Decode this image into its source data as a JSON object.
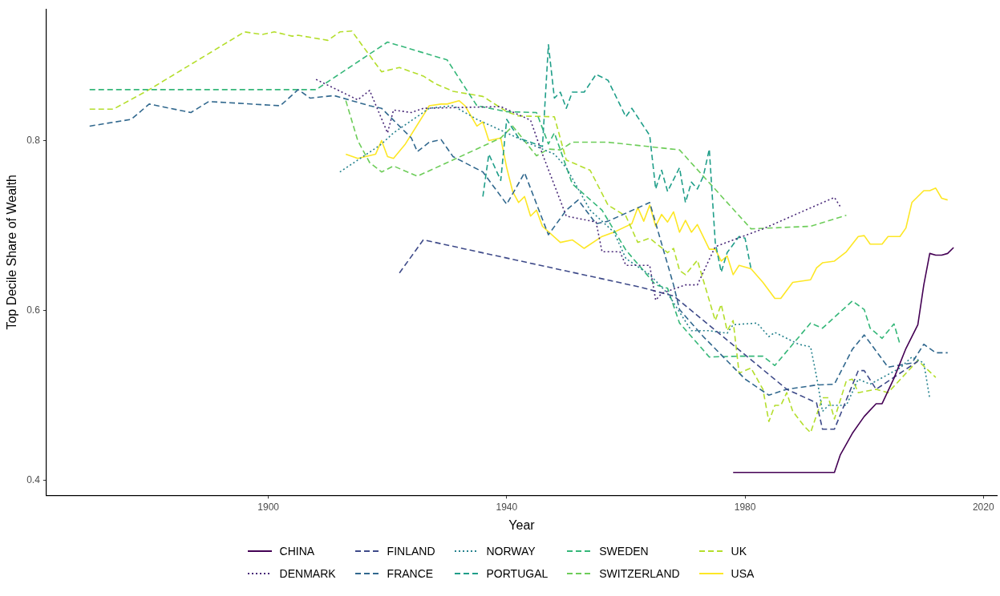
{
  "chart_data": {
    "type": "line",
    "xlabel": "Year",
    "ylabel": "Top Decile Share of Wealth",
    "xlim": [
      1862.75,
      2022.25
    ],
    "ylim": [
      0.382,
      0.955
    ],
    "xticks": [
      1900,
      1940,
      1980,
      2020
    ],
    "yticks": [
      0.4,
      0.6,
      0.8
    ],
    "grid": false,
    "legend": "bottom",
    "marker": "none",
    "series": [
      {
        "name": "CHINA",
        "color": "#440154",
        "line_style": "solid",
        "x": [
          1978,
          1995,
          1996,
          1998,
          2000,
          2002,
          2003,
          2005,
          2007,
          2009,
          2010,
          2011,
          2012,
          2013,
          2014,
          2015
        ],
        "values": [
          0.409,
          0.409,
          0.43,
          0.455,
          0.475,
          0.49,
          0.49,
          0.52,
          0.555,
          0.583,
          0.63,
          0.667,
          0.665,
          0.665,
          0.667,
          0.674
        ]
      },
      {
        "name": "DENMARK",
        "color": "#482878",
        "line_style": "dotted",
        "x": [
          1908,
          1915,
          1917,
          1920,
          1921,
          1924,
          1926,
          1939,
          1944,
          1946,
          1950,
          1955,
          1956,
          1959,
          1960,
          1964,
          1965,
          1966,
          1970,
          1972,
          1975,
          1983,
          1995,
          1996
        ],
        "values": [
          0.872,
          0.848,
          0.859,
          0.809,
          0.836,
          0.833,
          0.838,
          0.84,
          0.824,
          0.784,
          0.711,
          0.704,
          0.669,
          0.669,
          0.653,
          0.653,
          0.612,
          0.62,
          0.63,
          0.63,
          0.675,
          0.696,
          0.733,
          0.722
        ]
      },
      {
        "name": "FINLAND",
        "color": "#3e4a89",
        "line_style": "dashed",
        "x": [
          1922,
          1926,
          1962,
          1968,
          1987,
          1992,
          1993,
          1995,
          1999,
          2000,
          2002,
          2009
        ],
        "values": [
          0.644,
          0.683,
          0.628,
          0.617,
          0.507,
          0.491,
          0.46,
          0.46,
          0.529,
          0.529,
          0.507,
          0.54
        ]
      },
      {
        "name": "FRANCE",
        "color": "#31688e",
        "line_style": "dashed",
        "x": [
          1870,
          1877,
          1880,
          1887,
          1890,
          1902,
          1905,
          1907,
          1911,
          1917,
          1919,
          1924,
          1925,
          1927,
          1929,
          1931,
          1936,
          1940,
          1943,
          1947,
          1950,
          1952,
          1955,
          1957,
          1964,
          1968,
          1969,
          1973,
          1980,
          1984,
          1987,
          1992,
          1995,
          1998,
          2000,
          2004,
          2008,
          2010,
          2012,
          2014
        ],
        "values": [
          0.817,
          0.825,
          0.843,
          0.833,
          0.846,
          0.841,
          0.86,
          0.85,
          0.853,
          0.841,
          0.838,
          0.803,
          0.787,
          0.798,
          0.801,
          0.781,
          0.763,
          0.725,
          0.762,
          0.689,
          0.718,
          0.73,
          0.702,
          0.705,
          0.727,
          0.63,
          0.601,
          0.569,
          0.519,
          0.5,
          0.507,
          0.512,
          0.513,
          0.554,
          0.571,
          0.533,
          0.538,
          0.56,
          0.55,
          0.55
        ]
      },
      {
        "name": "NORWAY",
        "color": "#26828e",
        "line_style": "dotted",
        "x": [
          1912,
          1918,
          1919,
          1921,
          1927,
          1931,
          1935,
          1940,
          1944,
          1948,
          1950,
          1954,
          1958,
          1960,
          1964,
          1967,
          1971,
          1974,
          1977,
          1978,
          1982,
          1984,
          1985,
          1989,
          1991,
          1992,
          1993,
          1994,
          1997,
          1999,
          2001,
          2006,
          2008,
          2010,
          2011
        ],
        "values": [
          0.763,
          0.791,
          0.796,
          0.809,
          0.838,
          0.841,
          0.825,
          0.809,
          0.796,
          0.784,
          0.768,
          0.718,
          0.692,
          0.661,
          0.642,
          0.62,
          0.576,
          0.576,
          0.573,
          0.583,
          0.585,
          0.569,
          0.574,
          0.56,
          0.557,
          0.522,
          0.481,
          0.488,
          0.488,
          0.519,
          0.513,
          0.532,
          0.545,
          0.538,
          0.496
        ]
      },
      {
        "name": "PORTUGAL",
        "color": "#1f9e89",
        "line_style": "dashed",
        "x": [
          1936,
          1937,
          1939,
          1940,
          1942,
          1946,
          1947,
          1948,
          1949,
          1950,
          1951,
          1953,
          1955,
          1957,
          1960,
          1961,
          1964,
          1965,
          1966,
          1967,
          1969,
          1970,
          1971,
          1972,
          1973,
          1974,
          1975,
          1976,
          1977,
          1979,
          1980,
          1981
        ],
        "values": [
          0.734,
          0.784,
          0.753,
          0.825,
          0.803,
          0.793,
          0.913,
          0.85,
          0.857,
          0.838,
          0.857,
          0.857,
          0.878,
          0.871,
          0.828,
          0.838,
          0.806,
          0.743,
          0.765,
          0.74,
          0.768,
          0.727,
          0.751,
          0.743,
          0.758,
          0.79,
          0.68,
          0.645,
          0.668,
          0.687,
          0.685,
          0.649
        ]
      },
      {
        "name": "SWEDEN",
        "color": "#35b779",
        "line_style": "dashed",
        "x": [
          1870,
          1908,
          1920,
          1930,
          1935,
          1940,
          1945,
          1947,
          1948,
          1951,
          1956,
          1960,
          1965,
          1967,
          1969,
          1974,
          1979,
          1983,
          1985,
          1991,
          1993,
          1998,
          2000,
          2001,
          2003,
          2005,
          2006
        ],
        "values": [
          0.86,
          0.86,
          0.916,
          0.895,
          0.841,
          0.834,
          0.833,
          0.796,
          0.809,
          0.749,
          0.718,
          0.671,
          0.63,
          0.626,
          0.585,
          0.545,
          0.546,
          0.546,
          0.535,
          0.585,
          0.579,
          0.611,
          0.601,
          0.579,
          0.567,
          0.584,
          0.56
        ]
      },
      {
        "name": "SWITZERLAND",
        "color": "#6dcd59",
        "line_style": "dashed",
        "x": [
          1913,
          1915,
          1917,
          1919,
          1921,
          1925,
          1930,
          1939,
          1941,
          1945,
          1947,
          1949,
          1951,
          1957,
          1969,
          1981,
          1991,
          1997
        ],
        "values": [
          0.847,
          0.8,
          0.774,
          0.763,
          0.77,
          0.758,
          0.774,
          0.803,
          0.817,
          0.782,
          0.79,
          0.789,
          0.798,
          0.798,
          0.789,
          0.696,
          0.699,
          0.712
        ]
      },
      {
        "name": "UK",
        "color": "#b4de2c",
        "line_style": "dashed",
        "x": [
          1870,
          1874,
          1880,
          1896,
          1899,
          1901,
          1904,
          1905,
          1910,
          1912,
          1914,
          1919,
          1922,
          1926,
          1928,
          1931,
          1936,
          1940,
          1942,
          1948,
          1950,
          1954,
          1957,
          1960,
          1962,
          1964,
          1967,
          1968,
          1969,
          1970,
          1972,
          1975,
          1976,
          1977,
          1978,
          1979,
          1981,
          1983,
          1984,
          1985,
          1986,
          1987,
          1988,
          1990,
          1991,
          1993,
          1994,
          1995,
          1997,
          1998,
          1999,
          2002,
          2004,
          2009,
          2012
        ],
        "values": [
          0.837,
          0.837,
          0.86,
          0.928,
          0.925,
          0.928,
          0.923,
          0.924,
          0.918,
          0.928,
          0.929,
          0.881,
          0.886,
          0.876,
          0.867,
          0.858,
          0.852,
          0.834,
          0.829,
          0.828,
          0.777,
          0.765,
          0.724,
          0.711,
          0.68,
          0.685,
          0.668,
          0.673,
          0.647,
          0.642,
          0.659,
          0.588,
          0.607,
          0.576,
          0.588,
          0.526,
          0.532,
          0.507,
          0.469,
          0.488,
          0.488,
          0.503,
          0.481,
          0.463,
          0.456,
          0.497,
          0.497,
          0.472,
          0.517,
          0.519,
          0.503,
          0.507,
          0.503,
          0.541,
          0.521
        ]
      },
      {
        "name": "USA",
        "color": "#fde725",
        "line_style": "solid",
        "x": [
          1913,
          1915,
          1918,
          1919,
          1920,
          1921,
          1923,
          1927,
          1929,
          1930,
          1932,
          1933,
          1935,
          1936,
          1937,
          1939,
          1940,
          1941,
          1942,
          1943,
          1944,
          1945,
          1946,
          1949,
          1951,
          1953,
          1956,
          1958,
          1961,
          1962,
          1963,
          1964,
          1965,
          1966,
          1967,
          1968,
          1969,
          1970,
          1971,
          1972,
          1974,
          1975,
          1976,
          1977,
          1978,
          1979,
          1981,
          1983,
          1985,
          1986,
          1988,
          1991,
          1992,
          1993,
          1995,
          1997,
          1999,
          2000,
          2001,
          2003,
          2004,
          2006,
          2007,
          2008,
          2010,
          2011,
          2012,
          2013,
          2014
        ],
        "values": [
          0.784,
          0.779,
          0.784,
          0.8,
          0.781,
          0.779,
          0.796,
          0.841,
          0.843,
          0.843,
          0.847,
          0.841,
          0.817,
          0.822,
          0.8,
          0.803,
          0.768,
          0.74,
          0.727,
          0.734,
          0.711,
          0.718,
          0.699,
          0.68,
          0.683,
          0.673,
          0.687,
          0.692,
          0.702,
          0.721,
          0.705,
          0.724,
          0.699,
          0.713,
          0.704,
          0.716,
          0.692,
          0.706,
          0.692,
          0.701,
          0.672,
          0.672,
          0.658,
          0.664,
          0.642,
          0.653,
          0.649,
          0.633,
          0.614,
          0.614,
          0.633,
          0.636,
          0.65,
          0.656,
          0.658,
          0.669,
          0.687,
          0.688,
          0.678,
          0.678,
          0.687,
          0.687,
          0.697,
          0.727,
          0.741,
          0.741,
          0.744,
          0.732,
          0.73
        ]
      }
    ]
  }
}
